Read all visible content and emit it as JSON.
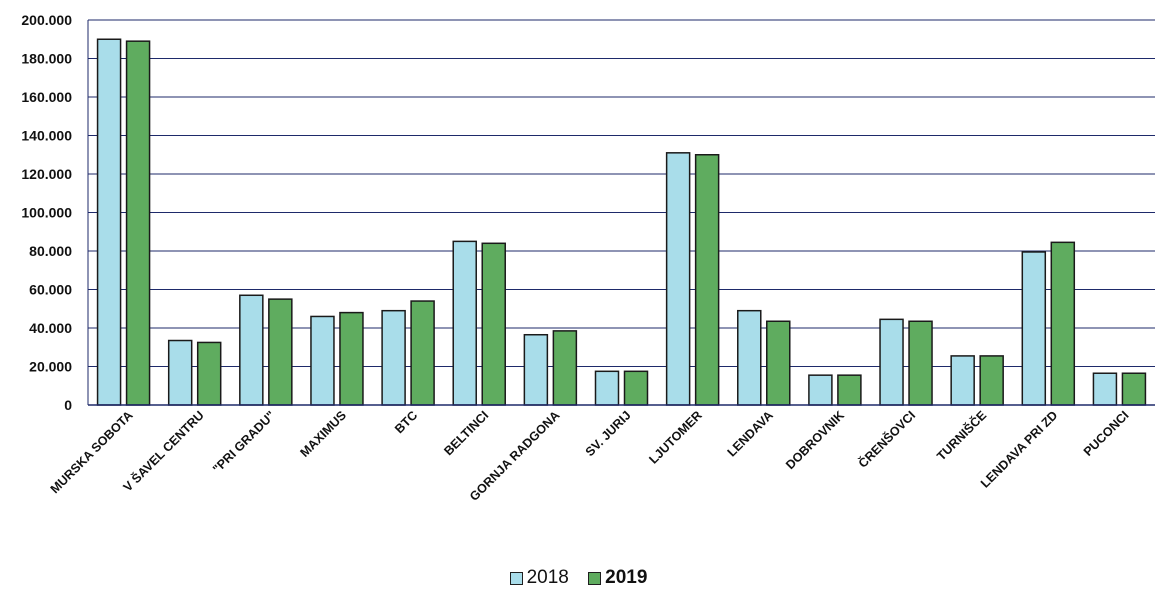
{
  "chart_data": {
    "type": "bar",
    "categories": [
      "MURSKA SOBOTA",
      "V ŠAVEL CENTRU",
      "\"PRI GRADU\"",
      "MAXIMUS",
      "BTC",
      "BELTINCI",
      "GORNJA RADGONA",
      "SV. JURIJ",
      "LJUTOMER",
      "LENDAVA",
      "DOBROVNIK",
      "ČRENŠOVCI",
      "TURNIŠČE",
      "LENDAVA PRI ZD",
      "PUCONCI"
    ],
    "series": [
      {
        "name": "2018",
        "color": "#a9ddea",
        "values": [
          190000,
          33500,
          57000,
          46000,
          49000,
          85000,
          36500,
          17500,
          131000,
          49000,
          15500,
          44500,
          25500,
          79500,
          16500
        ]
      },
      {
        "name": "2019",
        "color": "#5fac5f",
        "values": [
          189000,
          32500,
          55000,
          48000,
          54000,
          84000,
          38500,
          17500,
          130000,
          43500,
          15500,
          43500,
          25500,
          84500,
          16500
        ]
      }
    ],
    "yticks": [
      "0",
      "20.000",
      "40.000",
      "60.000",
      "80.000",
      "100.000",
      "120.000",
      "140.000",
      "160.000",
      "180.000",
      "200.000"
    ],
    "ylim": [
      0,
      200000
    ],
    "grid": true,
    "legend": "bottom-center"
  }
}
